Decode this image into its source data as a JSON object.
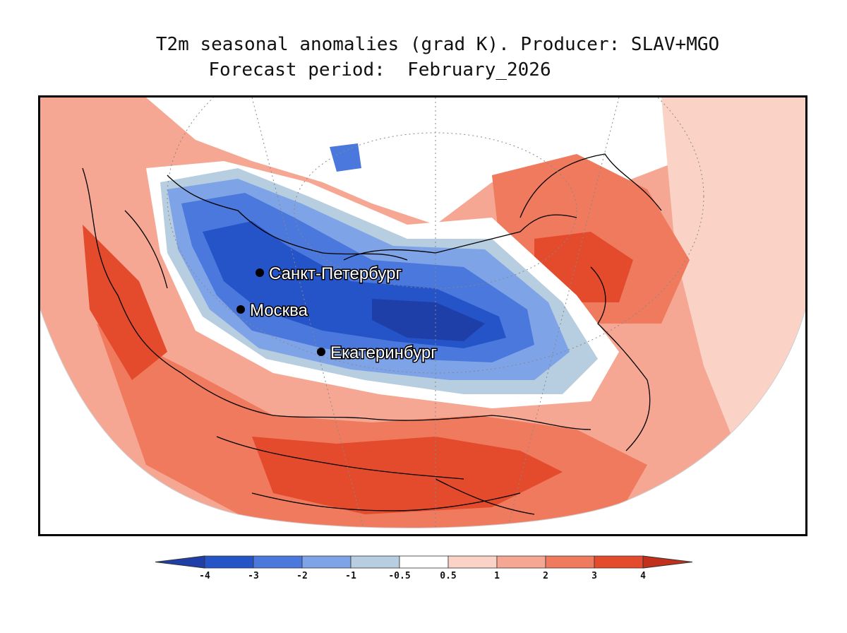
{
  "title": {
    "line1": "T2m seasonal anomalies (grad K). Producer: SLAV+MGO",
    "line2": "Forecast period:  February_2026"
  },
  "cities": [
    {
      "name": "Санкт-Петербург"
    },
    {
      "name": "Москва"
    },
    {
      "name": "Екатеринбург"
    }
  ],
  "colorbar": {
    "ticks": [
      "-4",
      "-3",
      "-2",
      "-1",
      "-0.5",
      "0.5",
      "1",
      "2",
      "3",
      "4"
    ],
    "colors": {
      "below_-4": "#1f3fa8",
      "-4_-3": "#2553c8",
      "-3_-2": "#4a78dc",
      "-2_-1": "#7ea3e6",
      "-1_-0.5": "#b7cde0",
      "-0.5_0.5": "#ffffff",
      "0.5_1": "#fbd3c6",
      "1_2": "#f6a793",
      "2_3": "#f07a5d",
      "3_4": "#e44a2c",
      "above_4": "#c2301c"
    }
  }
}
